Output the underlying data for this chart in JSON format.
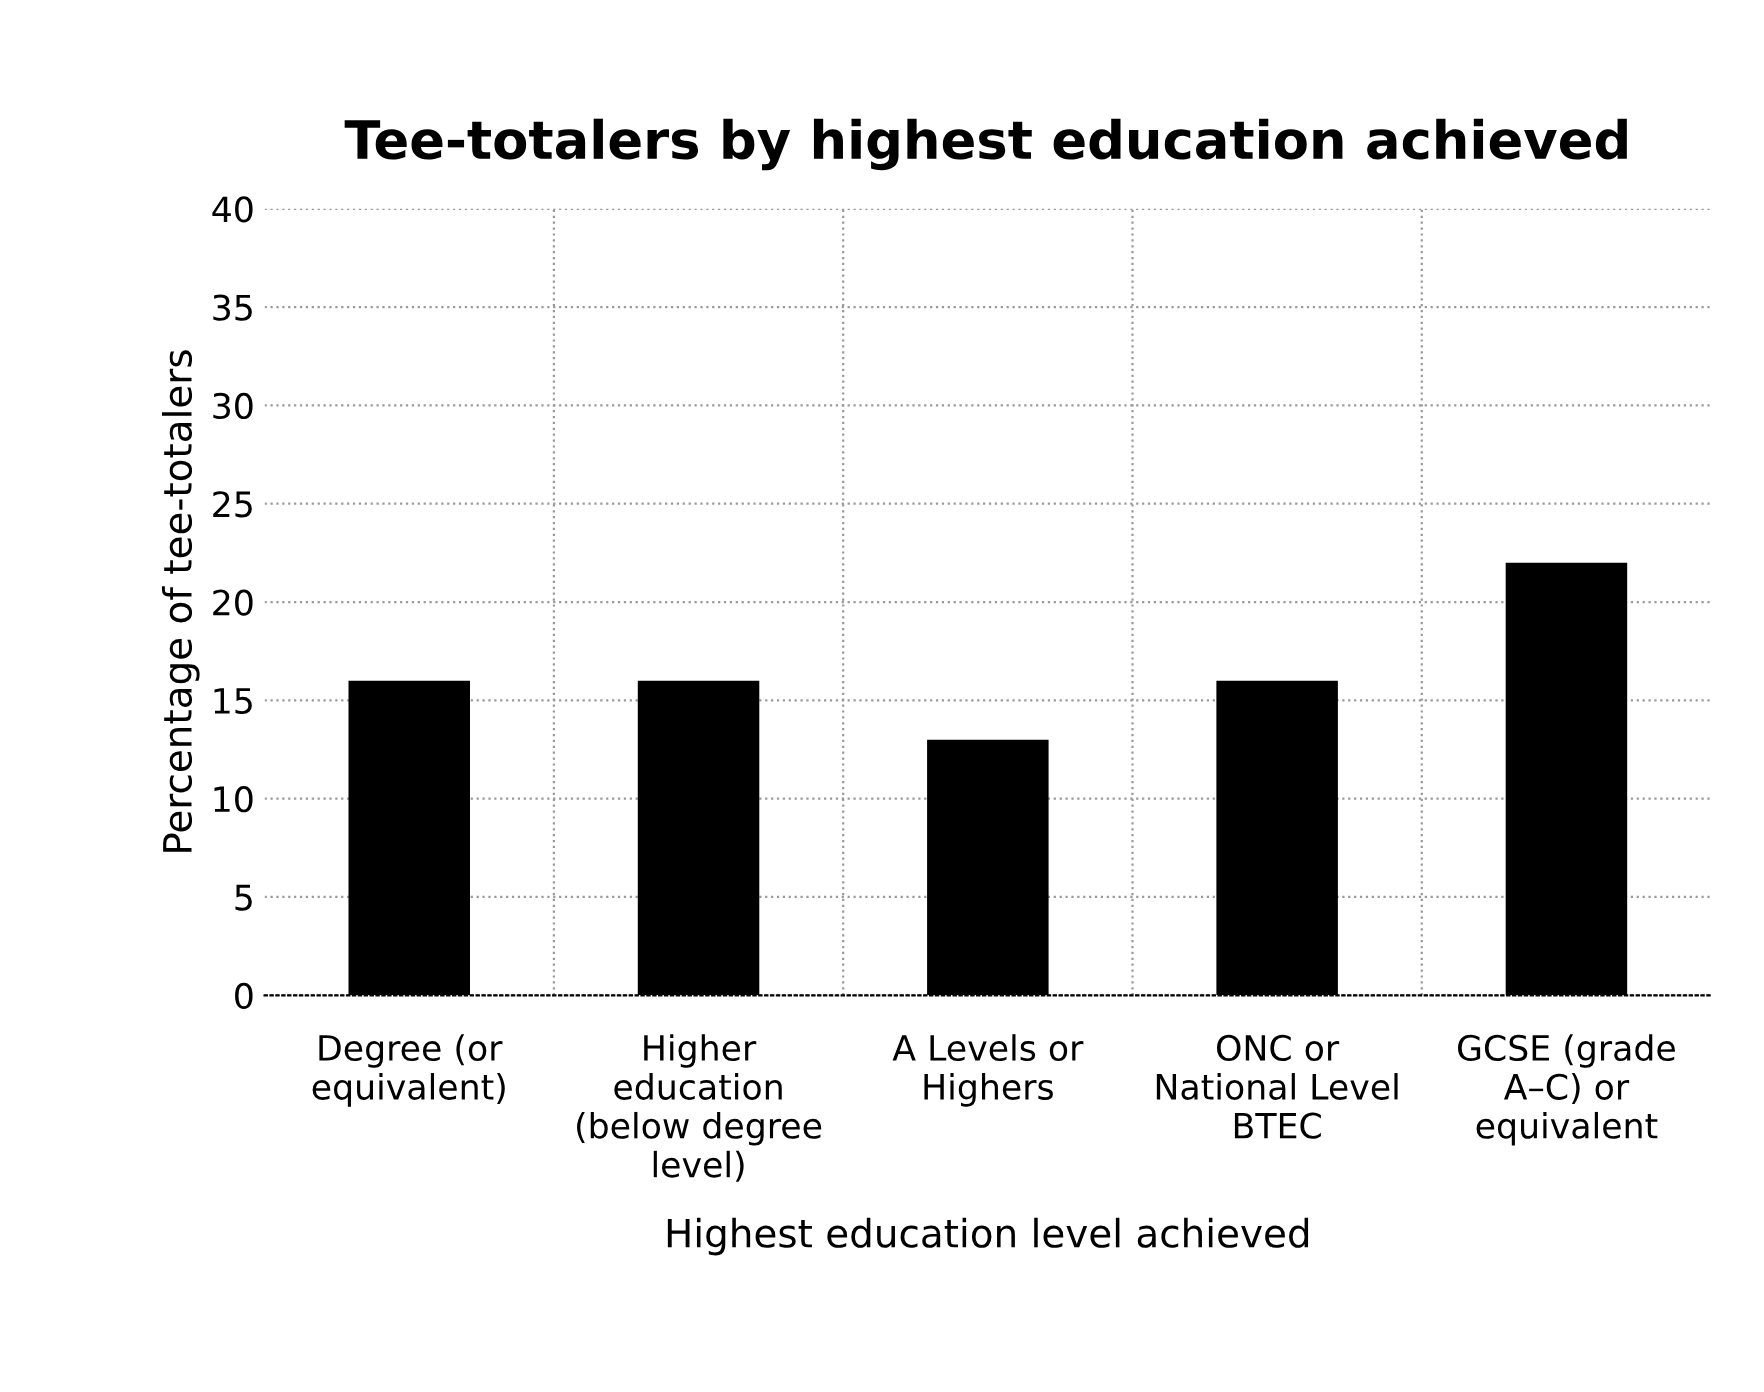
{
  "chart_data": {
    "type": "bar",
    "title": "Tee-totalers by highest education achieved",
    "xlabel": "Highest education level achieved",
    "ylabel": "Percentage of tee-totalers",
    "categories": [
      "Degree (or\nequivalent)",
      "Higher\neducation\n(below degree\nlevel)",
      "A Levels or\nHighers",
      "ONC or\nNational Level\nBTEC",
      "GCSE (grade\nA–C) or\nequivalent"
    ],
    "values": [
      16,
      16,
      13,
      16,
      22
    ],
    "color": "#000000",
    "ylim": [
      0,
      40
    ],
    "yticks": [
      0,
      5,
      10,
      15,
      20,
      25,
      30,
      35,
      40
    ],
    "grid": true
  }
}
